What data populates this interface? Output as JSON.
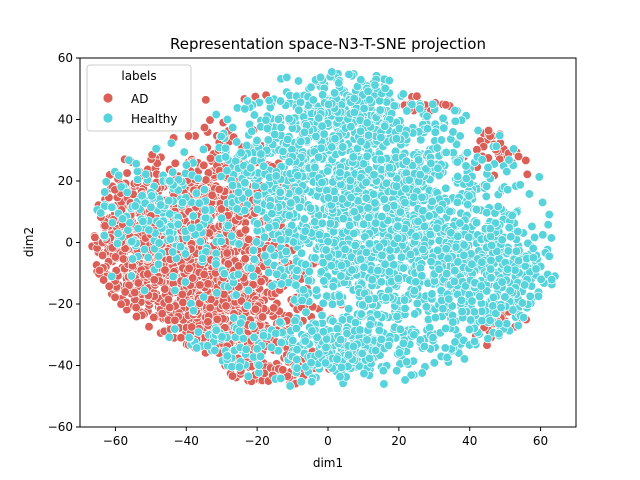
{
  "chart_data": {
    "type": "scatter",
    "title": "Representation space-N3-T-SNE projection",
    "xlabel": "dim1",
    "ylabel": "dim2",
    "xlim": [
      -70,
      70
    ],
    "ylim": [
      -60,
      60
    ],
    "xticks": [
      -60,
      -40,
      -20,
      0,
      20,
      40,
      60
    ],
    "yticks": [
      -60,
      -40,
      -20,
      0,
      20,
      40,
      60
    ],
    "grid": false,
    "legend": {
      "title": "labels",
      "placement": "upper-left"
    },
    "series": [
      {
        "name": "AD",
        "color": "#db5f57",
        "clusters": [
          {
            "x": -42,
            "y": -4,
            "sx": 13,
            "sy": 15,
            "n": 1100
          },
          {
            "x": -25,
            "y": -24,
            "sx": 9,
            "sy": 9,
            "n": 350
          },
          {
            "x": -28,
            "y": 18,
            "sx": 7,
            "sy": 12,
            "n": 160
          },
          {
            "x": -58,
            "y": 5,
            "sx": 5,
            "sy": 9,
            "n": 120
          },
          {
            "x": -12,
            "y": -42,
            "sx": 5,
            "sy": 3,
            "n": 70
          },
          {
            "x": 50,
            "y": 32,
            "sx": 5,
            "sy": 5,
            "n": 35
          },
          {
            "x": 48,
            "y": -26,
            "sx": 4,
            "sy": 3,
            "n": 30
          },
          {
            "x": 29,
            "y": 48,
            "sx": 4,
            "sy": 3,
            "n": 15
          }
        ]
      },
      {
        "name": "Healthy",
        "color": "#57d3db",
        "clusters": [
          {
            "x": 15,
            "y": 5,
            "sx": 20,
            "sy": 22,
            "n": 1700
          },
          {
            "x": 45,
            "y": -12,
            "sx": 9,
            "sy": 10,
            "n": 350
          },
          {
            "x": 5,
            "y": 42,
            "sx": 9,
            "sy": 8,
            "n": 260
          },
          {
            "x": 5,
            "y": -35,
            "sx": 9,
            "sy": 5,
            "n": 200
          },
          {
            "x": -15,
            "y": 25,
            "sx": 8,
            "sy": 14,
            "n": 220
          },
          {
            "x": -48,
            "y": 8,
            "sx": 9,
            "sy": 10,
            "n": 160
          },
          {
            "x": -30,
            "y": -35,
            "sx": 6,
            "sy": 5,
            "n": 60
          }
        ]
      }
    ]
  }
}
